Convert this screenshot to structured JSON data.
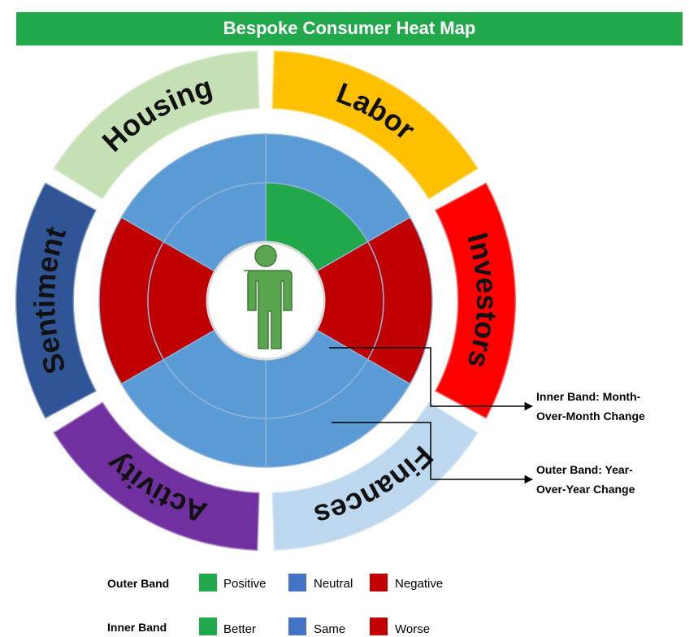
{
  "title": "Bespoke Consumer Heat Map",
  "sectors": [
    {
      "label": "Labor",
      "color": "#ffc000",
      "outer_color": "#5b9bd5",
      "inner_color": "#21a84a"
    },
    {
      "label": "Investors",
      "color": "#ff0000",
      "outer_color": "#c00000",
      "inner_color": "#c00000"
    },
    {
      "label": "Finances",
      "color": "#bdd7ee",
      "outer_color": "#5b9bd5",
      "inner_color": "#5b9bd5"
    },
    {
      "label": "Activity",
      "color": "#7030a0",
      "outer_color": "#5b9bd5",
      "inner_color": "#5b9bd5"
    },
    {
      "label": "Sentiment",
      "color": "#2f5597",
      "outer_color": "#c00000",
      "inner_color": "#c00000"
    },
    {
      "label": "Housing",
      "color": "#c5e0b4",
      "outer_color": "#5b9bd5",
      "inner_color": "#5b9bd5"
    }
  ],
  "callouts": [
    {
      "lines": [
        "Inner Band: Month-",
        "Over-Month Change"
      ]
    },
    {
      "lines": [
        "Outer Band: Year-",
        "Over-Year Change"
      ]
    }
  ],
  "legend": [
    {
      "label": "Outer Band",
      "items": [
        {
          "label": "Positive",
          "color": "#21a84a"
        },
        {
          "label": "Neutral",
          "color": "#4472c4"
        },
        {
          "label": "Negative",
          "color": "#c00000"
        }
      ]
    },
    {
      "label": "Inner Band",
      "items": [
        {
          "label": "Better",
          "color": "#21a84a"
        },
        {
          "label": "Same",
          "color": "#4472c4"
        },
        {
          "label": "Worse",
          "color": "#c00000"
        }
      ]
    }
  ]
}
